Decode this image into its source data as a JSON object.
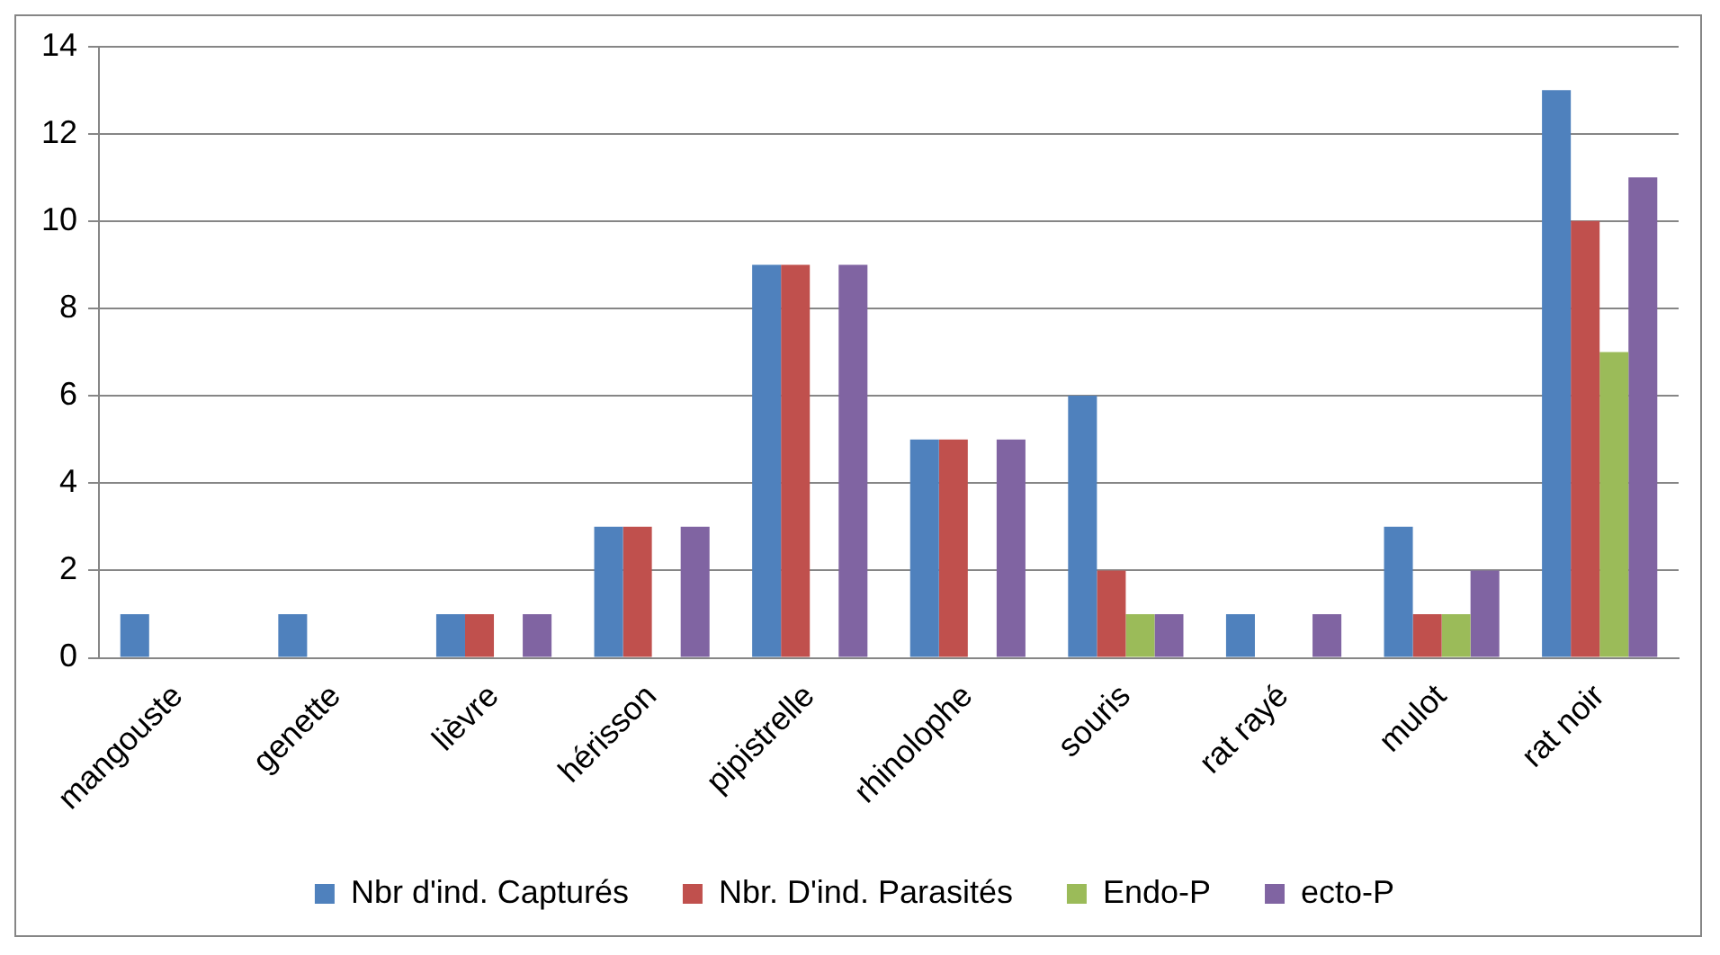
{
  "chart_data": {
    "type": "bar",
    "categories": [
      "mangouste",
      "genette",
      "lièvre",
      "hérisson",
      "pipistrelle",
      "rhinolophe",
      "souris",
      "rat rayé",
      "mulot",
      "rat noir"
    ],
    "series": [
      {
        "name": "Nbr d'ind. Capturés",
        "color": "#4f81bd",
        "values": [
          1,
          1,
          1,
          3,
          9,
          5,
          6,
          1,
          3,
          13
        ]
      },
      {
        "name": "Nbr. D'ind. Parasités",
        "color": "#c0504d",
        "values": [
          0,
          0,
          1,
          3,
          9,
          5,
          2,
          0,
          1,
          10
        ]
      },
      {
        "name": "Endo-P",
        "color": "#9bbb59",
        "values": [
          0,
          0,
          0,
          0,
          0,
          0,
          1,
          0,
          1,
          7
        ]
      },
      {
        "name": "ecto-P",
        "color": "#8064a2",
        "values": [
          0,
          0,
          1,
          3,
          9,
          5,
          1,
          1,
          2,
          11
        ]
      }
    ],
    "ylim": [
      0,
      14
    ],
    "yticks": [
      0,
      2,
      4,
      6,
      8,
      10,
      12,
      14
    ],
    "grid": "y",
    "legend": "bottom"
  }
}
